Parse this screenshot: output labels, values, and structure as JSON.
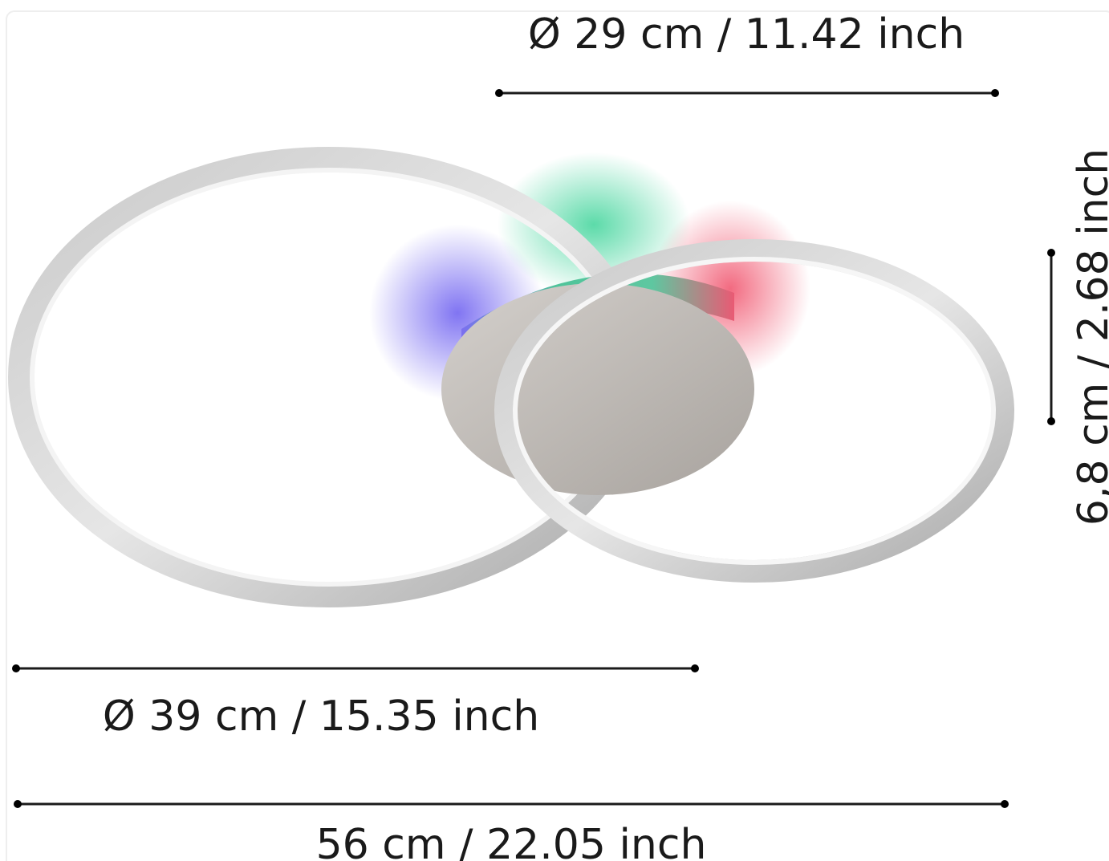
{
  "dimensions": {
    "small_ring_diameter": "Ø 29 cm / 11.42 inch",
    "height": "6,8 cm / 2.68 inch",
    "large_ring_diameter": "Ø 39 cm / 15.35 inch",
    "total_width": "56 cm / 22.05 inch"
  }
}
